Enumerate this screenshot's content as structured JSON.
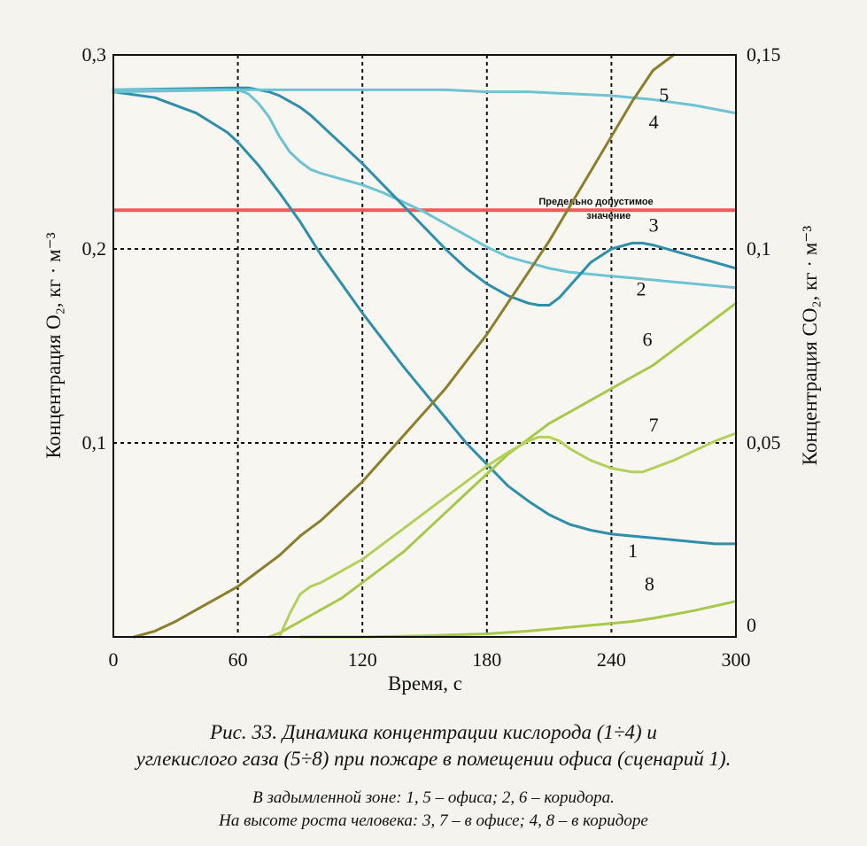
{
  "chart_data": {
    "type": "line",
    "xlabel": "Время, с",
    "ylabel_left": "Концентрация O₂, кг · м⁻³",
    "ylabel_right": "Концентрация CO₂, кг · м⁻³",
    "xlim": [
      0,
      300
    ],
    "ylim_left": [
      0,
      0.3
    ],
    "ylim_right": [
      0,
      0.15
    ],
    "x_ticks": [
      "0",
      "60",
      "120",
      "180",
      "240",
      "300"
    ],
    "y_left_ticks": [
      "0,1",
      "0,2",
      "0,3"
    ],
    "y_right_ticks": [
      "0",
      "0,05",
      "0,1",
      "0,15"
    ],
    "grid": true,
    "limit_line": {
      "value": 0.22,
      "axis": "left",
      "color": "#f05a5a",
      "label_line1": "Предельно допустимое",
      "label_line2": "значение"
    },
    "series": [
      {
        "name": "1",
        "axis": "left",
        "color": "#2f8fab",
        "x": [
          0,
          20,
          40,
          55,
          60,
          70,
          80,
          90,
          100,
          110,
          120,
          130,
          140,
          150,
          160,
          170,
          180,
          190,
          200,
          210,
          220,
          230,
          240,
          250,
          260,
          270,
          280,
          290,
          300
        ],
        "y": [
          0.281,
          0.278,
          0.27,
          0.26,
          0.255,
          0.243,
          0.229,
          0.214,
          0.197,
          0.182,
          0.167,
          0.153,
          0.139,
          0.126,
          0.113,
          0.1,
          0.089,
          0.078,
          0.07,
          0.063,
          0.058,
          0.055,
          0.053,
          0.052,
          0.051,
          0.05,
          0.049,
          0.048,
          0.048
        ]
      },
      {
        "name": "2",
        "axis": "left",
        "color": "#6ec3d3",
        "x": [
          0,
          60,
          65,
          70,
          75,
          80,
          85,
          90,
          95,
          100,
          110,
          120,
          130,
          140,
          150,
          160,
          170,
          180,
          190,
          200,
          210,
          220,
          230,
          240,
          250,
          260,
          270,
          280,
          290,
          300
        ],
        "y": [
          0.281,
          0.282,
          0.28,
          0.275,
          0.268,
          0.258,
          0.25,
          0.245,
          0.241,
          0.239,
          0.236,
          0.233,
          0.229,
          0.224,
          0.219,
          0.213,
          0.207,
          0.201,
          0.196,
          0.193,
          0.19,
          0.188,
          0.187,
          0.186,
          0.185,
          0.184,
          0.183,
          0.182,
          0.181,
          0.18
        ]
      },
      {
        "name": "3",
        "axis": "left",
        "color": "#2f8fab",
        "x": [
          0,
          60,
          65,
          70,
          75,
          80,
          85,
          90,
          95,
          100,
          110,
          120,
          130,
          140,
          150,
          160,
          170,
          180,
          190,
          200,
          205,
          210,
          215,
          220,
          230,
          240,
          250,
          255,
          260,
          270,
          280,
          290,
          300
        ],
        "y": [
          0.282,
          0.283,
          0.283,
          0.282,
          0.281,
          0.279,
          0.276,
          0.273,
          0.269,
          0.264,
          0.254,
          0.244,
          0.233,
          0.222,
          0.211,
          0.2,
          0.19,
          0.182,
          0.176,
          0.172,
          0.171,
          0.171,
          0.175,
          0.181,
          0.193,
          0.2,
          0.203,
          0.203,
          0.202,
          0.199,
          0.196,
          0.193,
          0.19
        ]
      },
      {
        "name": "4",
        "axis": "left",
        "color": "#6ec3d3",
        "x": [
          0,
          60,
          80,
          100,
          120,
          140,
          160,
          180,
          200,
          220,
          240,
          260,
          280,
          300
        ],
        "y": [
          0.282,
          0.282,
          0.282,
          0.282,
          0.282,
          0.282,
          0.282,
          0.281,
          0.281,
          0.28,
          0.279,
          0.277,
          0.274,
          0.27
        ]
      },
      {
        "name": "5",
        "axis": "right",
        "color": "#8c7e2a",
        "x": [
          10,
          20,
          30,
          40,
          50,
          60,
          70,
          80,
          90,
          100,
          110,
          120,
          130,
          140,
          150,
          160,
          170,
          180,
          190,
          200,
          210,
          220,
          230,
          240,
          250,
          260,
          270
        ],
        "y": [
          0,
          0.0015,
          0.004,
          0.007,
          0.01,
          0.013,
          0.017,
          0.021,
          0.026,
          0.03,
          0.035,
          0.04,
          0.046,
          0.052,
          0.058,
          0.064,
          0.071,
          0.078,
          0.086,
          0.094,
          0.102,
          0.111,
          0.12,
          0.129,
          0.138,
          0.146,
          0.15
        ]
      },
      {
        "name": "6",
        "axis": "right",
        "color": "#a8c84a",
        "x": [
          75,
          80,
          90,
          100,
          110,
          120,
          130,
          140,
          150,
          160,
          170,
          180,
          190,
          200,
          210,
          220,
          230,
          240,
          250,
          260,
          270,
          280,
          290,
          300
        ],
        "y": [
          0,
          0.001,
          0.004,
          0.007,
          0.01,
          0.014,
          0.018,
          0.022,
          0.027,
          0.032,
          0.037,
          0.042,
          0.047,
          0.051,
          0.055,
          0.058,
          0.061,
          0.064,
          0.067,
          0.07,
          0.074,
          0.078,
          0.082,
          0.086
        ]
      },
      {
        "name": "7",
        "axis": "right",
        "color": "#b4d05a",
        "x": [
          80,
          85,
          90,
          95,
          100,
          110,
          120,
          130,
          140,
          150,
          160,
          170,
          180,
          190,
          200,
          205,
          210,
          215,
          220,
          230,
          240,
          250,
          255,
          260,
          270,
          280,
          290,
          300
        ],
        "y": [
          0,
          0.006,
          0.011,
          0.013,
          0.014,
          0.017,
          0.02,
          0.024,
          0.028,
          0.032,
          0.036,
          0.04,
          0.044,
          0.0475,
          0.0505,
          0.0515,
          0.0515,
          0.0505,
          0.0485,
          0.0455,
          0.0435,
          0.0425,
          0.0425,
          0.0435,
          0.0455,
          0.048,
          0.0505,
          0.0525
        ]
      },
      {
        "name": "8",
        "axis": "right",
        "color": "#a8c84a",
        "x": [
          90,
          120,
          150,
          180,
          200,
          220,
          240,
          250,
          260,
          270,
          280,
          290,
          300
        ],
        "y": [
          0,
          0,
          0.0003,
          0.0008,
          0.0015,
          0.0025,
          0.0035,
          0.004,
          0.0048,
          0.0058,
          0.0068,
          0.008,
          0.0092
        ]
      }
    ]
  },
  "caption": {
    "line1": "Рис. 33. Динамика концентрации кислорода (1÷4) и",
    "line2": "углекислого газа (5÷8) при пожаре в помещении офиса (сценарий 1).",
    "line3": "В задымленной зоне: 1, 5 – офиса; 2, 6 – коридора.",
    "line4": "На высоте роста человека: 3, 7 – в офисе; 4, 8 – в коридоре"
  }
}
